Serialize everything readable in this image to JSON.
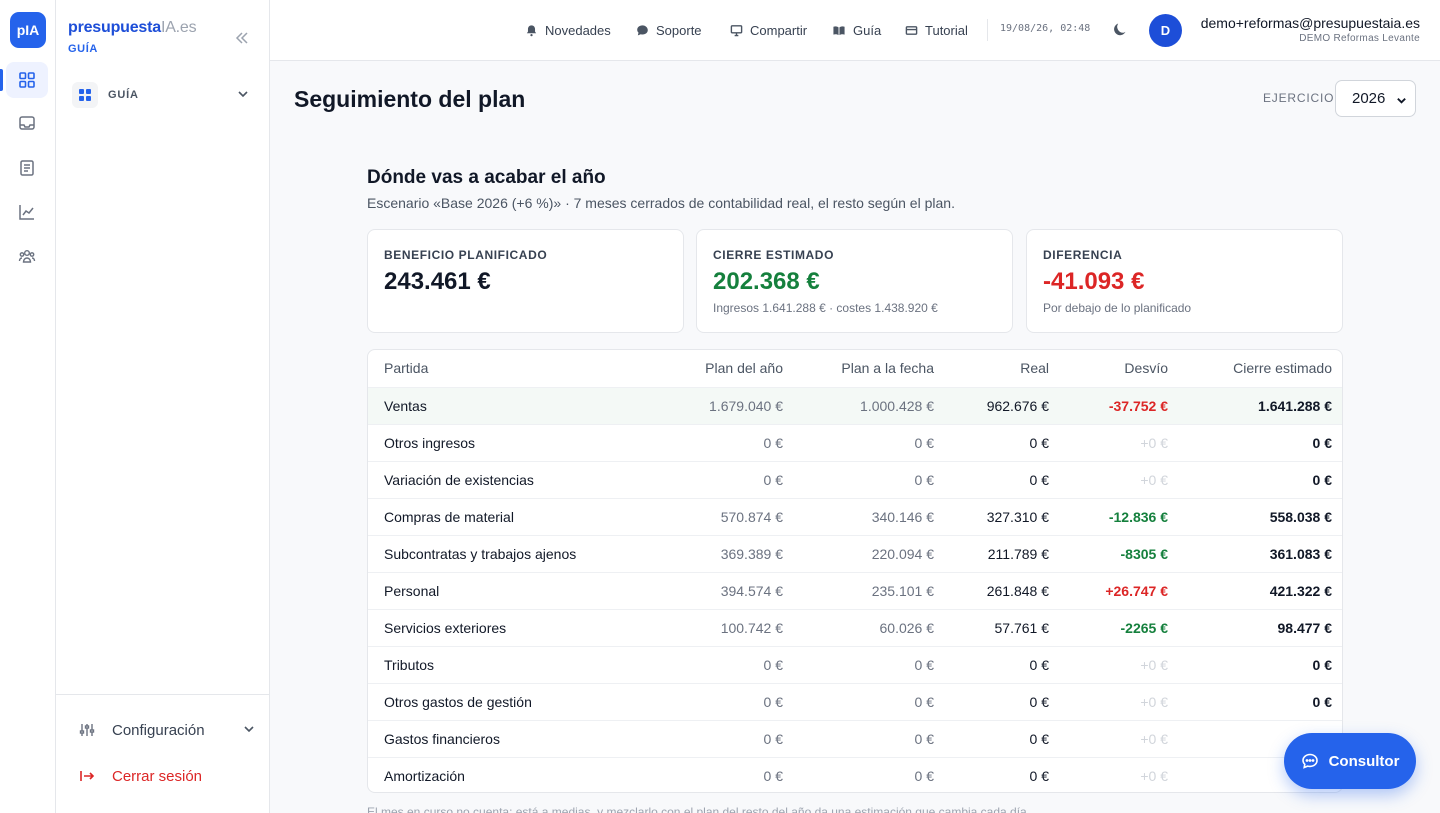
{
  "app": {
    "logo_text": "pIA",
    "brand_part1": "presupuesta",
    "brand_part2": "IA.es",
    "brand_sub": "GUÍA"
  },
  "sidebar": {
    "group_label": "GUÍA",
    "config_label": "Configuración",
    "logout_label": "Cerrar sesión"
  },
  "rail": {
    "items": [
      "dashboard-icon",
      "inbox-icon",
      "document-icon",
      "chart-line-icon",
      "team-icon"
    ],
    "active": "dashboard-icon"
  },
  "topbar": {
    "links": [
      "Novedades",
      "Soporte",
      "Compartir",
      "Guía",
      "Tutorial"
    ],
    "timestamp": "19/08/26, 02:48",
    "avatar_letter": "D",
    "user_email": "demo+reformas@presupuestaia.es",
    "user_org": "DEMO Reformas Levante"
  },
  "page": {
    "title": "Seguimiento del plan",
    "ejercicio_label": "EJERCICIO",
    "ejercicio_value": "2026"
  },
  "section": {
    "title": "Dónde vas a acabar el año",
    "subtitle": "Escenario «Base 2026 (+6 %)» · 7 meses cerrados de contabilidad real, el resto según el plan."
  },
  "cards": [
    {
      "label": "BENEFICIO PLANIFICADO",
      "value": "243.461 €",
      "note": "",
      "color": "#111827"
    },
    {
      "label": "CIERRE ESTIMADO",
      "value": "202.368 €",
      "note": "Ingresos 1.641.288 € · costes 1.438.920 €",
      "color": "#15803d"
    },
    {
      "label": "DIFERENCIA",
      "value": "-41.093 €",
      "note": "Por debajo de lo planificado",
      "color": "#dc2626"
    }
  ],
  "table": {
    "headers": [
      "Partida",
      "Plan del año",
      "Plan a la fecha",
      "Real",
      "Desvío",
      "Cierre estimado"
    ],
    "rows": [
      {
        "partida": "Ventas",
        "plan_anual": "1.679.040 €",
        "plan_fecha": "1.000.428 €",
        "real": "962.676 €",
        "desvio": "-37.752 €",
        "desvio_tone": "red",
        "cierre": "1.641.288 €",
        "highlight": true
      },
      {
        "partida": "Otros ingresos",
        "plan_anual": "0 €",
        "plan_fecha": "0 €",
        "real": "0 €",
        "desvio": "+0 €",
        "desvio_tone": "muted",
        "cierre": "0 €",
        "highlight": false
      },
      {
        "partida": "Variación de existencias",
        "plan_anual": "0 €",
        "plan_fecha": "0 €",
        "real": "0 €",
        "desvio": "+0 €",
        "desvio_tone": "muted",
        "cierre": "0 €",
        "highlight": false
      },
      {
        "partida": "Compras de material",
        "plan_anual": "570.874 €",
        "plan_fecha": "340.146 €",
        "real": "327.310 €",
        "desvio": "-12.836 €",
        "desvio_tone": "green",
        "cierre": "558.038 €",
        "highlight": false
      },
      {
        "partida": "Subcontratas y trabajos ajenos",
        "plan_anual": "369.389 €",
        "plan_fecha": "220.094 €",
        "real": "211.789 €",
        "desvio": "-8305 €",
        "desvio_tone": "green",
        "cierre": "361.083 €",
        "highlight": false
      },
      {
        "partida": "Personal",
        "plan_anual": "394.574 €",
        "plan_fecha": "235.101 €",
        "real": "261.848 €",
        "desvio": "+26.747 €",
        "desvio_tone": "red",
        "cierre": "421.322 €",
        "highlight": false
      },
      {
        "partida": "Servicios exteriores",
        "plan_anual": "100.742 €",
        "plan_fecha": "60.026 €",
        "real": "57.761 €",
        "desvio": "-2265 €",
        "desvio_tone": "green",
        "cierre": "98.477 €",
        "highlight": false
      },
      {
        "partida": "Tributos",
        "plan_anual": "0 €",
        "plan_fecha": "0 €",
        "real": "0 €",
        "desvio": "+0 €",
        "desvio_tone": "muted",
        "cierre": "0 €",
        "highlight": false
      },
      {
        "partida": "Otros gastos de gestión",
        "plan_anual": "0 €",
        "plan_fecha": "0 €",
        "real": "0 €",
        "desvio": "+0 €",
        "desvio_tone": "muted",
        "cierre": "0 €",
        "highlight": false
      },
      {
        "partida": "Gastos financieros",
        "plan_anual": "0 €",
        "plan_fecha": "0 €",
        "real": "0 €",
        "desvio": "+0 €",
        "desvio_tone": "muted",
        "cierre": "0 €",
        "highlight": false
      },
      {
        "partida": "Amortización",
        "plan_anual": "0 €",
        "plan_fecha": "0 €",
        "real": "0 €",
        "desvio": "+0 €",
        "desvio_tone": "muted",
        "cierre": "0 €",
        "highlight": false
      }
    ]
  },
  "footnote": "El mes en curso no cuenta: está a medias, y mezclarlo con el plan del resto del año da una estimación que cambia cada día.",
  "consultor_label": "Consultor",
  "colors": {
    "accent": "#2563eb",
    "positive": "#15803d",
    "negative": "#dc2626",
    "muted": "#d1d5db"
  }
}
